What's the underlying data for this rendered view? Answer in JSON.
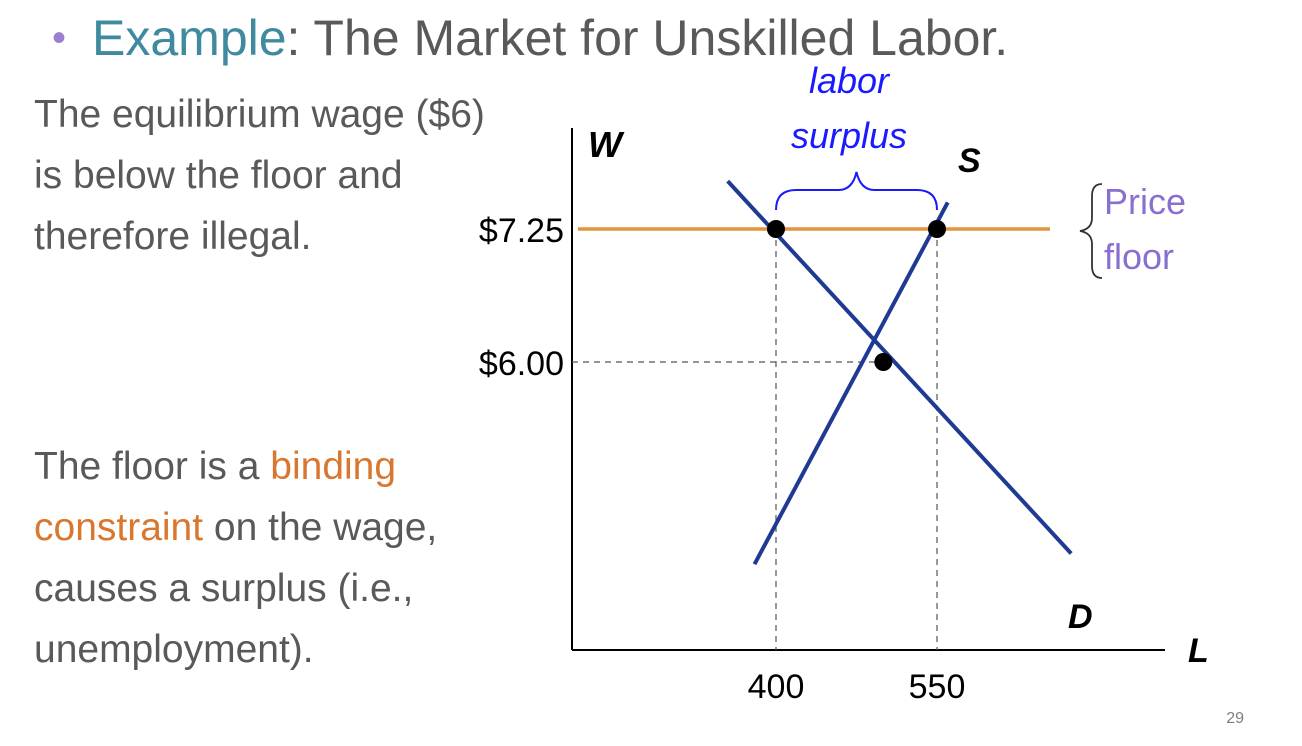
{
  "slide": {
    "bullet": "•",
    "title_accent": "Example",
    "title_rest": ": The Market for Unskilled Labor.",
    "para1": "The equilibrium wage ($6) is below the floor and therefore illegal.",
    "para2_pre": "The floor is a ",
    "para2_highlight": "binding constraint",
    "para2_post": " on the wage, causes a surplus (i.e., unemployment).",
    "page_number": "29"
  },
  "colors": {
    "title_accent": "#3f8a9e",
    "bullet": "#9b7fd1",
    "highlight": "#d9772e",
    "curves": "#1f3a93",
    "price_floor": "#e0953e",
    "surplus": "#1a1aff",
    "floor_label": "#8a6fd0"
  },
  "chart_data": {
    "type": "line",
    "xlabel": "L",
    "ylabel": "W",
    "x_ticks": [
      {
        "value": 400,
        "label": "400"
      },
      {
        "value": 550,
        "label": "550"
      }
    ],
    "y_ticks": [
      {
        "value": 7.25,
        "label": "$7.25"
      },
      {
        "value": 6.0,
        "label": "$6.00"
      }
    ],
    "series": [
      {
        "name": "S",
        "points": [
          [
            380,
            4.1
          ],
          [
            560,
            7.5
          ]
        ]
      },
      {
        "name": "D",
        "points": [
          [
            355,
            7.7
          ],
          [
            675,
            4.2
          ]
        ]
      }
    ],
    "price_floor": {
      "value": 7.25,
      "label_line1": "Price",
      "label_line2": "floor"
    },
    "equilibrium": {
      "x": 500,
      "y": 6.0
    },
    "floor_points": [
      {
        "x": 400,
        "y": 7.25
      },
      {
        "x": 550,
        "y": 7.25
      }
    ],
    "surplus": {
      "from": 400,
      "to": 550,
      "label_line1": "labor",
      "label_line2": "surplus"
    }
  }
}
